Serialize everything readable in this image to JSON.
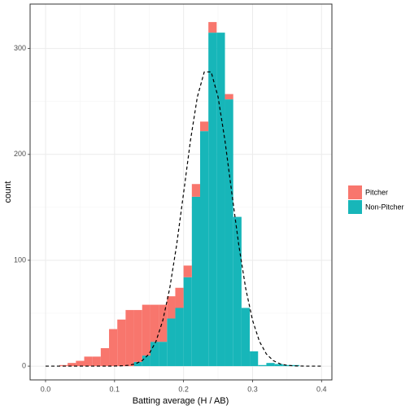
{
  "chart_data": {
    "type": "histogram",
    "xlabel": "Batting average (H / AB)",
    "ylabel": "count",
    "bins": [
      0.02,
      0.032,
      0.044,
      0.056,
      0.068,
      0.08,
      0.092,
      0.104,
      0.116,
      0.128,
      0.14,
      0.152,
      0.164,
      0.176,
      0.188,
      0.2,
      0.212,
      0.224,
      0.236,
      0.248,
      0.26,
      0.272,
      0.284,
      0.296,
      0.308,
      0.32,
      0.332,
      0.344,
      0.356,
      0.368,
      0.38
    ],
    "series": [
      {
        "name": "Pitcher",
        "color": "#F8766D",
        "values": [
          1,
          3,
          5,
          9,
          9,
          17,
          35,
          44,
          53,
          49,
          48,
          35,
          35,
          21,
          19,
          11,
          12,
          9,
          10,
          0,
          5,
          0,
          0,
          0,
          0,
          0,
          0,
          0,
          0,
          0
        ]
      },
      {
        "name": "Non-Pitcher",
        "color": "#17B6B9",
        "values": [
          0,
          0,
          0,
          0,
          0,
          0,
          0,
          0,
          0,
          4,
          10,
          23,
          23,
          45,
          55,
          84,
          160,
          222,
          315,
          315,
          252,
          141,
          55,
          14,
          1,
          3,
          2,
          1,
          1,
          0
        ]
      }
    ],
    "stacked": true,
    "curve": {
      "color": "#000000",
      "dashed": true,
      "x": [
        0,
        0.01,
        0.02,
        0.03,
        0.04,
        0.05,
        0.06,
        0.07,
        0.08,
        0.09,
        0.1,
        0.11,
        0.12,
        0.13,
        0.14,
        0.15,
        0.16,
        0.17,
        0.18,
        0.19,
        0.2,
        0.21,
        0.22,
        0.23,
        0.24,
        0.25,
        0.26,
        0.27,
        0.28,
        0.29,
        0.3,
        0.31,
        0.32,
        0.33,
        0.34,
        0.35,
        0.36,
        0.37,
        0.38,
        0.39,
        0.4
      ],
      "y": [
        0,
        0,
        0,
        0,
        0,
        0,
        0,
        0,
        0,
        0,
        0.1,
        0.3,
        0.8,
        2.1,
        5.2,
        11.5,
        23.3,
        43.3,
        73.6,
        114.6,
        163.3,
        213.1,
        254.3,
        277.9,
        277.9,
        254.3,
        213.1,
        163.3,
        114.6,
        73.6,
        43.3,
        23.3,
        11.5,
        5.2,
        2.1,
        0.8,
        0.3,
        0.1,
        0,
        0,
        0
      ]
    },
    "xlim": [
      -0.0224,
      0.415
    ],
    "ylim": [
      -13,
      342
    ],
    "xticks": [
      {
        "value": 0,
        "label": "0.0"
      },
      0.1,
      0.2,
      0.3,
      0.4
    ],
    "yticks": [
      0,
      100,
      200,
      300
    ],
    "minor_xticks": [
      0.05,
      0.15,
      0.25,
      0.35
    ],
    "minor_yticks": [
      50,
      150,
      250
    ],
    "grid": true,
    "legend": "right"
  }
}
